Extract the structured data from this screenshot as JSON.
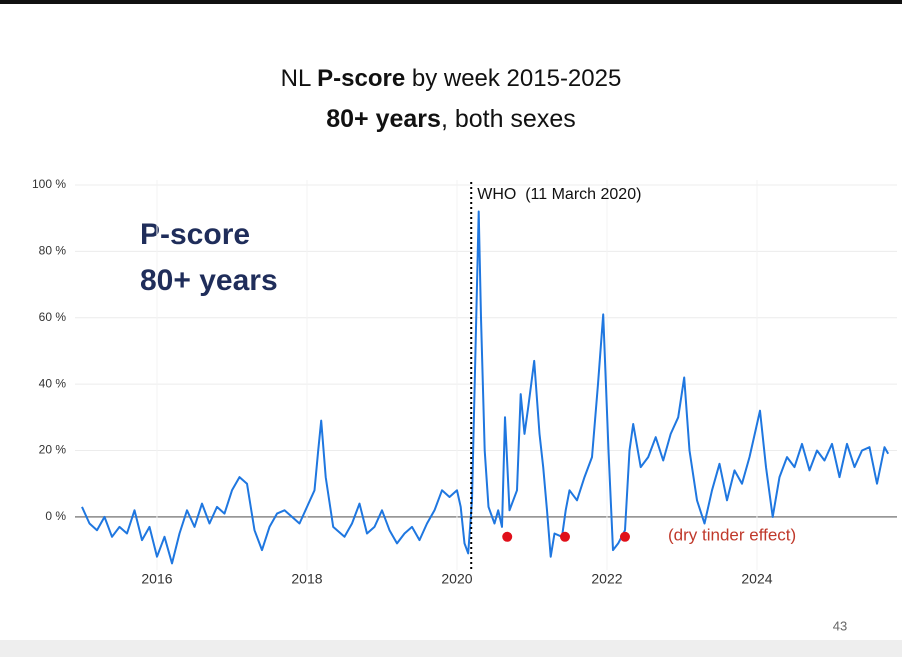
{
  "chart_data": {
    "type": "line",
    "title_parts": [
      "NL ",
      "P-score",
      " by week 2015-2025"
    ],
    "subtitle_parts": [
      "80+ years",
      ", both sexes"
    ],
    "inset_label": [
      "P-score",
      "80+ years"
    ],
    "page_number": "43",
    "series": [
      {
        "name": "P-score 80+",
        "color": "#1f77e0",
        "x": [
          2015.0,
          2015.1,
          2015.2,
          2015.3,
          2015.4,
          2015.5,
          2015.6,
          2015.7,
          2015.8,
          2015.9,
          2016.0,
          2016.1,
          2016.2,
          2016.3,
          2016.4,
          2016.5,
          2016.6,
          2016.7,
          2016.8,
          2016.9,
          2017.0,
          2017.1,
          2017.2,
          2017.3,
          2017.4,
          2017.5,
          2017.6,
          2017.7,
          2017.8,
          2017.9,
          2018.0,
          2018.1,
          2018.15,
          2018.19,
          2018.25,
          2018.35,
          2018.5,
          2018.6,
          2018.7,
          2018.8,
          2018.9,
          2019.0,
          2019.1,
          2019.2,
          2019.3,
          2019.4,
          2019.5,
          2019.6,
          2019.7,
          2019.8,
          2019.9,
          2020.0,
          2020.05,
          2020.1,
          2020.15,
          2020.2,
          2020.29,
          2020.32,
          2020.37,
          2020.42,
          2020.5,
          2020.55,
          2020.6,
          2020.64,
          2020.7,
          2020.8,
          2020.85,
          2020.9,
          2020.95,
          2021.03,
          2021.1,
          2021.15,
          2021.2,
          2021.25,
          2021.3,
          2021.4,
          2021.45,
          2021.5,
          2021.6,
          2021.7,
          2021.8,
          2021.88,
          2021.95,
          2022.02,
          2022.08,
          2022.15,
          2022.24,
          2022.3,
          2022.35,
          2022.45,
          2022.55,
          2022.65,
          2022.75,
          2022.85,
          2022.95,
          2023.03,
          2023.1,
          2023.2,
          2023.3,
          2023.4,
          2023.5,
          2023.6,
          2023.7,
          2023.8,
          2023.9,
          2023.98,
          2024.04,
          2024.12,
          2024.21,
          2024.3,
          2024.4,
          2024.5,
          2024.6,
          2024.7,
          2024.8,
          2024.9,
          2025.0,
          2025.1,
          2025.2,
          2025.3,
          2025.4,
          2025.5,
          2025.6,
          2025.7,
          2025.75
        ],
        "values": [
          3,
          -2,
          -4,
          0,
          -6,
          -3,
          -5,
          2,
          -7,
          -3,
          -12,
          -6,
          -14,
          -5,
          2,
          -3,
          4,
          -2,
          3,
          1,
          8,
          12,
          10,
          -4,
          -10,
          -3,
          1,
          2,
          0,
          -2,
          3,
          8,
          20,
          29,
          12,
          -3,
          -6,
          -2,
          4,
          -5,
          -3,
          2,
          -4,
          -8,
          -5,
          -3,
          -7,
          -2,
          2,
          8,
          6,
          8,
          3,
          -8,
          -11,
          5,
          92,
          60,
          20,
          3,
          -2,
          2,
          -3,
          30,
          2,
          8,
          37,
          25,
          33,
          47,
          25,
          15,
          2,
          -12,
          -5,
          -6,
          2,
          8,
          5,
          12,
          18,
          40,
          61,
          20,
          -10,
          -8,
          -4,
          20,
          28,
          15,
          18,
          24,
          17,
          25,
          30,
          42,
          20,
          5,
          -2,
          8,
          16,
          5,
          14,
          10,
          18,
          26,
          32,
          15,
          0,
          12,
          18,
          15,
          22,
          14,
          20,
          17,
          22,
          12,
          22,
          15,
          20,
          21,
          10,
          21,
          19
        ]
      }
    ],
    "markers": {
      "color": "#e0101a",
      "x": [
        2020.67,
        2021.44,
        2022.24
      ],
      "y": [
        -6,
        -6,
        -6
      ]
    },
    "vline": {
      "x": 2020.19,
      "label": "WHO  (11 March 2020)"
    },
    "annotation": "(dry tinder effect)",
    "xlim": [
      2014.907,
      2025.867
    ],
    "xticks": [
      2016,
      2018,
      2020,
      2022,
      2024
    ],
    "ylim": [
      -16,
      101.5
    ],
    "yticks": [
      {
        "value": 0,
        "label": "0 %"
      },
      {
        "value": 20,
        "label": "20 %"
      },
      {
        "value": 40,
        "label": "40 %"
      },
      {
        "value": 60,
        "label": "60 %"
      },
      {
        "value": 80,
        "label": "80 %"
      },
      {
        "value": 100,
        "label": "100 %"
      }
    ],
    "grid": true
  }
}
